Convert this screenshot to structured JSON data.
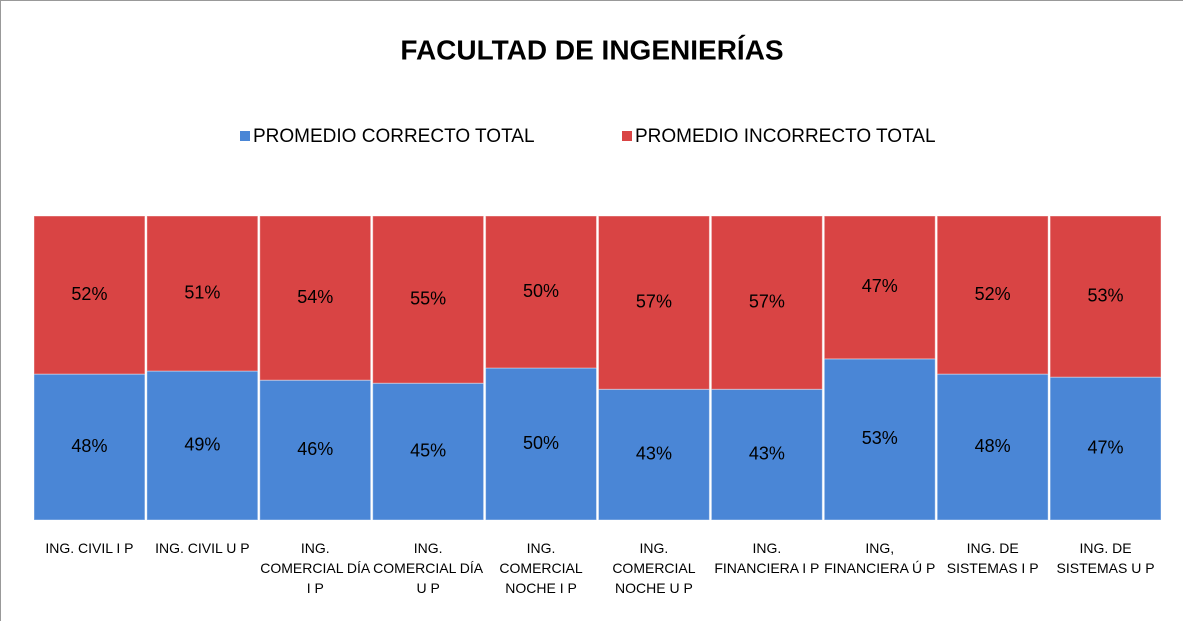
{
  "chart_data": {
    "type": "stacked_bar",
    "title": "FACULTAD DE INGENIERÍAS",
    "categories": [
      "ING. CIVIL I P",
      "ING. CIVIL U P",
      "ING. COMERCIAL DÍA I P",
      "ING. COMERCIAL DÍA U P",
      "ING. COMERCIAL NOCHE I P",
      "ING. COMERCIAL NOCHE U P",
      "ING. FINANCIERA I P",
      "ING, FINANCIERA Ú P",
      "ING. DE SISTEMAS I P",
      "ING. DE SISTEMAS U P"
    ],
    "series": [
      {
        "name": "PROMEDIO CORRECTO TOTAL",
        "color": "#4a86d6",
        "values": [
          48,
          49,
          46,
          45,
          50,
          43,
          43,
          53,
          48,
          47
        ],
        "value_labels": [
          "48%",
          "49%",
          "46%",
          "45%",
          "50%",
          "43%",
          "43%",
          "53%",
          "48%",
          "47%"
        ]
      },
      {
        "name": "PROMEDIO INCORRECTO  TOTAL",
        "color": "#d94444",
        "values": [
          52,
          51,
          54,
          55,
          50,
          57,
          57,
          47,
          52,
          53
        ],
        "value_labels": [
          "52%",
          "51%",
          "54%",
          "55%",
          "50%",
          "57%",
          "57%",
          "47%",
          "52%",
          "53%"
        ]
      }
    ],
    "ylim": [
      0,
      100
    ],
    "legend": "top"
  }
}
